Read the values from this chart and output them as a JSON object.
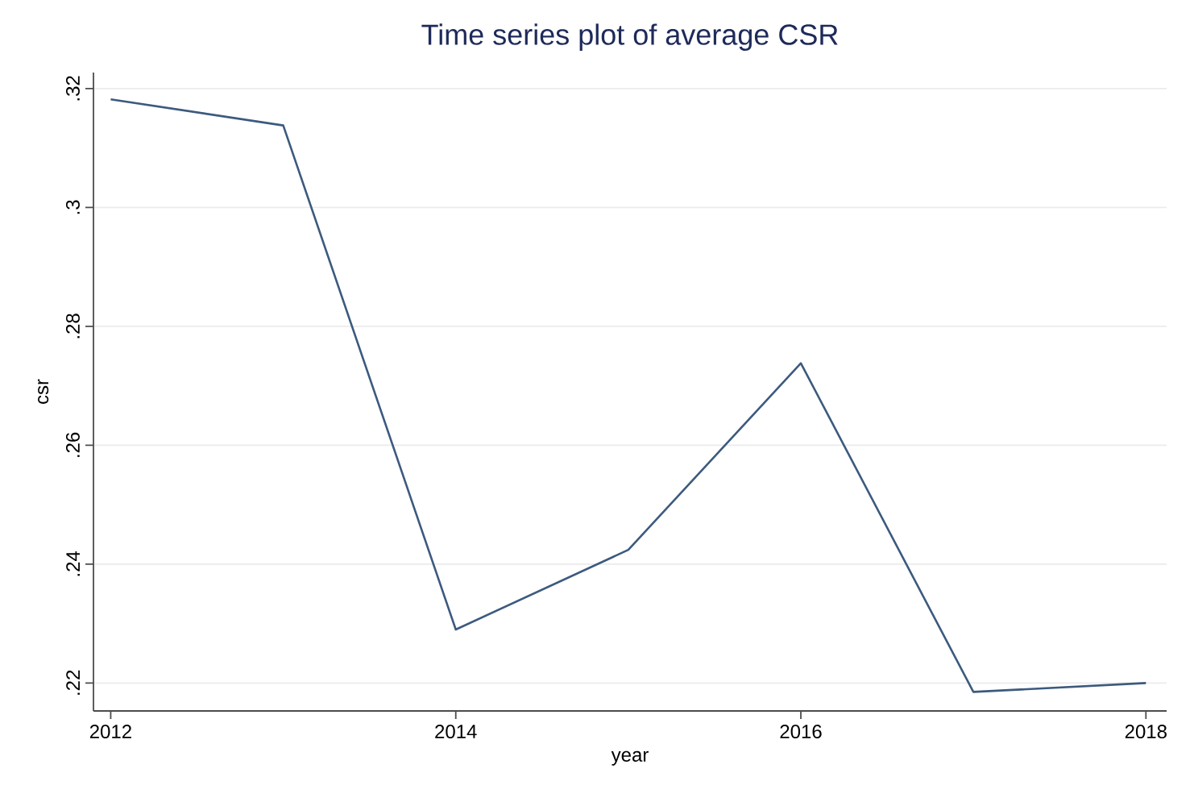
{
  "chart_data": {
    "type": "line",
    "title": "Time series plot of average CSR",
    "xlabel": "year",
    "ylabel": "csr",
    "x": [
      2012,
      2013,
      2014,
      2015,
      2016,
      2017,
      2018
    ],
    "series": [
      {
        "color": "#3c5a7e",
        "values": [
          0.3182,
          0.3138,
          0.229,
          0.2424,
          0.2738,
          0.2185,
          0.22
        ]
      }
    ],
    "xlim": [
      2011.9,
      2018.12
    ],
    "ylim": [
      0.2153,
      0.3227
    ],
    "xticks": [
      2012,
      2014,
      2016,
      2018
    ],
    "yticks": [
      {
        "value": 0.22,
        "label": ".22"
      },
      {
        "value": 0.24,
        "label": ".24"
      },
      {
        "value": 0.26,
        "label": ".26"
      },
      {
        "value": 0.28,
        "label": ".28"
      },
      {
        "value": 0.3,
        "label": ".3"
      },
      {
        "value": 0.32,
        "label": ".32"
      }
    ],
    "grid": "y",
    "marker": "none",
    "line_style": "solid"
  }
}
